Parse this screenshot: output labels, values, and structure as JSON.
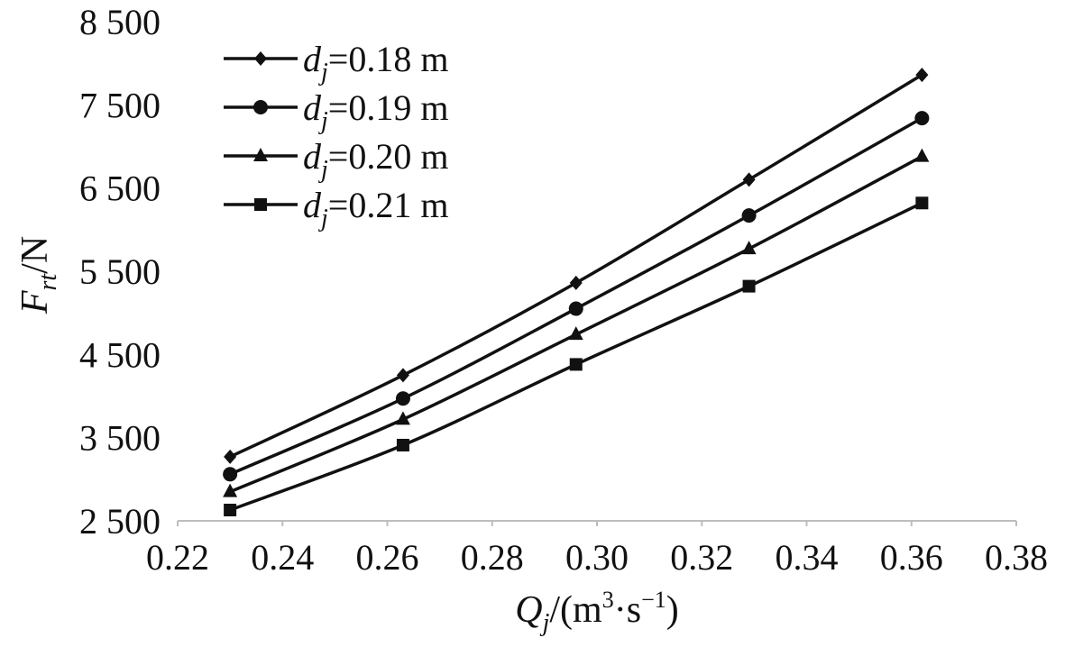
{
  "chart_data": {
    "type": "line",
    "x": [
      0.23,
      0.263,
      0.296,
      0.329,
      0.362
    ],
    "series": [
      {
        "name_main": "d",
        "name_sub": "j",
        "name_rest": "=0.18 m",
        "marker": "diamond",
        "values": [
          3270,
          4250,
          5360,
          6600,
          7860
        ]
      },
      {
        "name_main": "d",
        "name_sub": "j",
        "name_rest": "=0.19 m",
        "marker": "circle",
        "values": [
          3060,
          3970,
          5050,
          6170,
          7340
        ]
      },
      {
        "name_main": "d",
        "name_sub": "j",
        "name_rest": "=0.20 m",
        "marker": "triangle",
        "values": [
          2850,
          3720,
          4740,
          5770,
          6880
        ]
      },
      {
        "name_main": "d",
        "name_sub": "j",
        "name_rest": "=0.21 m",
        "marker": "square",
        "values": [
          2630,
          3410,
          4380,
          5320,
          6320
        ]
      }
    ],
    "xlim": [
      0.22,
      0.38
    ],
    "ylim": [
      2500,
      8500
    ],
    "x_ticks": [
      "0.22",
      "0.24",
      "0.26",
      "0.28",
      "0.30",
      "0.32",
      "0.34",
      "0.36",
      "0.38"
    ],
    "y_ticks": [
      "2 500",
      "3 500",
      "4 500",
      "5 500",
      "6 500",
      "7 500",
      "8 500"
    ],
    "xlabel": {
      "main": "Q",
      "sub": "j",
      "rest": "/(m",
      "sup1": "3",
      "mid": "·s",
      "sup2": "−1",
      "end": ")"
    },
    "ylabel": {
      "main": "F",
      "sub": "rt",
      "rest": "/N"
    },
    "legend_position": "top-left",
    "grid": false,
    "colors": {
      "line": "#111111",
      "axis": "#bdbdbd"
    }
  }
}
